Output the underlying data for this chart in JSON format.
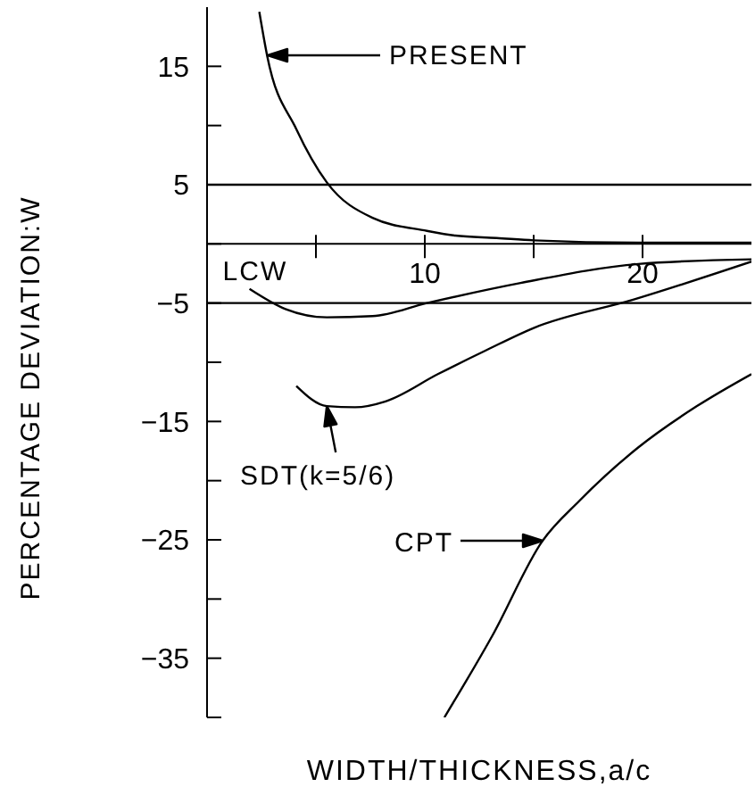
{
  "chart_data": {
    "type": "line",
    "xlabel": "WIDTH/THICKNESS,a/c",
    "ylabel": "PERCENTAGE DEVIATION:W",
    "xlim": [
      0,
      25
    ],
    "xticks": [
      {
        "value": 5,
        "label": null
      },
      10,
      {
        "value": 15,
        "label": null
      },
      20
    ],
    "ylim": [
      -40,
      20
    ],
    "yticks": [
      15,
      {
        "value": 10,
        "label": null
      },
      5,
      {
        "value": 0,
        "label": null
      },
      -5,
      {
        "value": -10,
        "label": null
      },
      -15,
      {
        "value": -20,
        "label": null
      },
      -25,
      {
        "value": -30,
        "label": null
      },
      -35,
      {
        "value": -40,
        "label": null
      }
    ],
    "annotations": [
      "PRESENT",
      {
        "text": "LCW",
        "x": 1.95,
        "y": -3.8
      },
      {
        "text": "SDT(k=5/6)",
        "x": 5.5,
        "y": -13.7
      },
      "CPT"
    ],
    "ref_lines": [
      {
        "axis": "y",
        "value": 5,
        "color": "#000000"
      },
      {
        "axis": "y",
        "value": -5,
        "color": "#000000"
      }
    ],
    "series": [
      {
        "color": "#000000",
        "x": [
          2.4,
          2.76,
          4.1,
          5.5,
          7.6,
          10.1,
          11.4,
          13.3,
          15,
          19.8,
          25
        ],
        "values": [
          19.6,
          15.9,
          9.7,
          5.2,
          2.2,
          1.1,
          0.7,
          0.5,
          0.3,
          0.1,
          0.1
        ]
      },
      {
        "color": "#000000",
        "x": [
          1.95,
          3.6,
          5.5,
          7.6,
          10.1,
          14.4,
          19.8,
          25
        ],
        "values": [
          -3.8,
          -5.5,
          -6.2,
          -6.1,
          -5,
          -3.3,
          -1.7,
          -1.3
        ]
      },
      {
        "color": "#000000",
        "x": [
          4.1,
          5.5,
          6.8,
          8.2,
          10.6,
          12.8,
          15,
          19.6,
          25
        ],
        "values": [
          -12,
          -13.7,
          -13.8,
          -13.3,
          -11,
          -9,
          -7.1,
          -4.7,
          -1.5
        ]
      },
      {
        "color": "#000000",
        "x": [
          10.9,
          13.1,
          15.4,
          17.1,
          19.8,
          22.5,
          25
        ],
        "values": [
          -40,
          -33.1,
          -25.1,
          -21.7,
          -17.2,
          -13.7,
          -11
        ]
      }
    ]
  }
}
